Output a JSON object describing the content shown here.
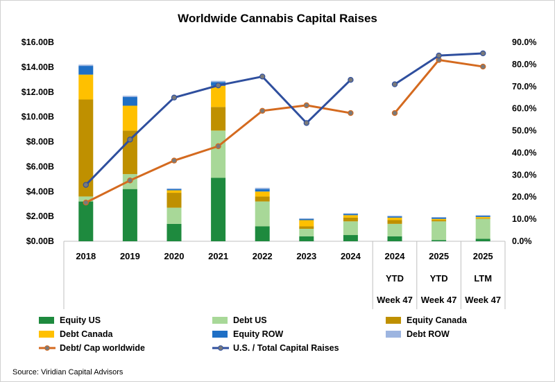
{
  "chart_data": {
    "type": "bar",
    "title": "Worldwide Cannabis Capital Raises",
    "source": "Source: Viridian Capital Advisors",
    "categories": [
      {
        "lines": [
          "2018"
        ]
      },
      {
        "lines": [
          "2019"
        ]
      },
      {
        "lines": [
          "2020"
        ]
      },
      {
        "lines": [
          "2021"
        ]
      },
      {
        "lines": [
          "2022"
        ]
      },
      {
        "lines": [
          "2023"
        ]
      },
      {
        "lines": [
          "2024"
        ]
      },
      {
        "lines": [
          "2024",
          "YTD",
          "Week 47"
        ]
      },
      {
        "lines": [
          "2025",
          "YTD",
          "Week 47"
        ]
      },
      {
        "lines": [
          "2025",
          "LTM",
          "Week 47"
        ]
      }
    ],
    "y_left": {
      "min": 0,
      "max": 16,
      "step": 2,
      "ticks": [
        "$0.00B",
        "$2.00B",
        "$4.00B",
        "$6.00B",
        "$8.00B",
        "$10.00B",
        "$12.00B",
        "$14.00B",
        "$16.00B"
      ]
    },
    "y_right": {
      "min": 0,
      "max": 90,
      "step": 10,
      "ticks": [
        "0.0%",
        "10.0%",
        "20.0%",
        "30.0%",
        "40.0%",
        "50.0%",
        "60.0%",
        "70.0%",
        "80.0%",
        "90.0%"
      ]
    },
    "grid": false,
    "legend_position": "bottom",
    "series": [
      {
        "name": "Equity US",
        "kind": "bar",
        "color": "#1e8a3e",
        "values": [
          3.2,
          4.2,
          1.4,
          5.1,
          1.2,
          0.4,
          0.5,
          0.4,
          0.1,
          0.2
        ]
      },
      {
        "name": "Debt US",
        "kind": "bar",
        "color": "#a8d898",
        "values": [
          0.4,
          1.2,
          1.3,
          3.8,
          2.0,
          0.6,
          1.1,
          1.0,
          1.5,
          1.6
        ]
      },
      {
        "name": "Equity Canada",
        "kind": "bar",
        "color": "#bf9000",
        "values": [
          7.8,
          3.5,
          1.2,
          1.9,
          0.4,
          0.2,
          0.3,
          0.3,
          0.1,
          0.05
        ]
      },
      {
        "name": "Debt Canada",
        "kind": "bar",
        "color": "#ffc000",
        "values": [
          2.0,
          2.0,
          0.2,
          1.7,
          0.4,
          0.5,
          0.2,
          0.2,
          0.1,
          0.1
        ]
      },
      {
        "name": "Equity ROW",
        "kind": "bar",
        "color": "#1f6fc5",
        "values": [
          0.7,
          0.7,
          0.1,
          0.3,
          0.2,
          0.1,
          0.1,
          0.1,
          0.1,
          0.1
        ]
      },
      {
        "name": "Debt ROW",
        "kind": "bar",
        "color": "#9db5e0",
        "values": [
          0.1,
          0.1,
          0.05,
          0.1,
          0.1,
          0.05,
          0.05,
          0.05,
          0.05,
          0.05
        ]
      },
      {
        "name": "Debt/ Cap worldwide",
        "kind": "line",
        "axis": "right",
        "color": "#d46a1f",
        "values": [
          17.5,
          27.5,
          36.5,
          43,
          59,
          61.5,
          58,
          58,
          82,
          79
        ]
      },
      {
        "name": "U.S. / Total Capital Raises",
        "kind": "line",
        "axis": "right",
        "color": "#2f4f9e",
        "values": [
          25.5,
          46,
          65,
          70.5,
          74.5,
          53.5,
          73,
          71,
          84,
          85
        ]
      }
    ]
  }
}
